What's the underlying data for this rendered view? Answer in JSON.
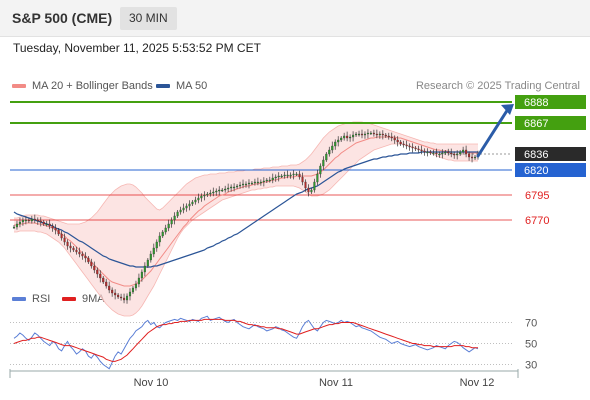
{
  "header": {
    "title": "S&P 500 (CME)",
    "interval": "30 MIN"
  },
  "datetime": "Tuesday, November 11, 2025 5:53:52 PM CET",
  "credit": "Research © 2025 Trading Central",
  "legend": {
    "ma20": {
      "label": "MA 20 + Bollinger Bands",
      "color": "#f28b86"
    },
    "ma50": {
      "label": "MA 50",
      "color": "#2b5597"
    }
  },
  "rsi_legend": {
    "rsi": {
      "label": "RSI",
      "color": "#5b7fd6"
    },
    "ma9": {
      "label": "9MA",
      "color": "#e02020"
    }
  },
  "chart_data": [
    {
      "type": "candlestick",
      "y_range": [
        6720,
        6900
      ],
      "x_labels": [
        "Nov 10",
        "Nov 11",
        "Nov 12"
      ],
      "levels": [
        {
          "value": 6888,
          "label": "6888",
          "style": "resistance",
          "color": "#44a010"
        },
        {
          "value": 6867,
          "label": "6867",
          "style": "resistance",
          "color": "#44a010"
        },
        {
          "value": 6836,
          "label": "6836",
          "style": "last",
          "color": "#2a2a2a"
        },
        {
          "value": 6820,
          "label": "6820",
          "style": "pivot",
          "color": "#2563d1"
        },
        {
          "value": 6795,
          "label": "6795",
          "style": "support",
          "color": "#e02020"
        },
        {
          "value": 6770,
          "label": "6770",
          "style": "support",
          "color": "#e02020"
        }
      ],
      "close": [
        6763,
        6766,
        6768,
        6770,
        6770,
        6769,
        6771,
        6770,
        6769,
        6768,
        6766,
        6766,
        6764,
        6762,
        6760,
        6756,
        6752,
        6748,
        6744,
        6742,
        6740,
        6738,
        6736,
        6734,
        6732,
        6728,
        6724,
        6720,
        6716,
        6712,
        6708,
        6704,
        6700,
        6697,
        6695,
        6693,
        6692,
        6690,
        6694,
        6698,
        6702,
        6706,
        6712,
        6718,
        6724,
        6730,
        6736,
        6742,
        6748,
        6754,
        6758,
        6762,
        6766,
        6770,
        6774,
        6778,
        6780,
        6782,
        6784,
        6786,
        6788,
        6790,
        6792,
        6794,
        6795,
        6796,
        6797,
        6798,
        6799,
        6800,
        6800,
        6801,
        6802,
        6803,
        6803,
        6804,
        6805,
        6806,
        6806,
        6807,
        6807,
        6808,
        6808,
        6808,
        6809,
        6810,
        6810,
        6812,
        6813,
        6814,
        6814,
        6815,
        6815,
        6815,
        6816,
        6816,
        6813,
        6808,
        6802,
        6798,
        6800,
        6808,
        6816,
        6824,
        6830,
        6836,
        6840,
        6844,
        6848,
        6850,
        6852,
        6854,
        6852,
        6853,
        6855,
        6856,
        6856,
        6855,
        6856,
        6857,
        6857,
        6856,
        6855,
        6856,
        6855,
        6854,
        6853,
        6852,
        6850,
        6848,
        6846,
        6845,
        6844,
        6843,
        6842,
        6841,
        6840,
        6839,
        6838,
        6838,
        6837,
        6837,
        6836,
        6836,
        6837,
        6838,
        6837,
        6836,
        6835,
        6836,
        6838,
        6840,
        6836,
        6833,
        6832,
        6833,
        6836
      ],
      "ma20": [
        6765,
        6765,
        6766,
        6766,
        6767,
        6767,
        6767,
        6767,
        6766,
        6766,
        6765,
        6764,
        6763,
        6762,
        6760,
        6758,
        6756,
        6754,
        6751,
        6749,
        6746,
        6743,
        6740,
        6737,
        6734,
        6731,
        6728,
        6725,
        6722,
        6719,
        6716,
        6713,
        6710,
        6708,
        6707,
        6706,
        6705,
        6704,
        6704,
        6704,
        6705,
        6706,
        6708,
        6710,
        6713,
        6716,
        6719,
        6723,
        6727,
        6731,
        6735,
        6739,
        6743,
        6747,
        6751,
        6755,
        6759,
        6763,
        6766,
        6770,
        6773,
        6776,
        6779,
        6781,
        6784,
        6786,
        6788,
        6790,
        6792,
        6794,
        6795,
        6796,
        6798,
        6799,
        6800,
        6801,
        6802,
        6803,
        6804,
        6804,
        6805,
        6806,
        6806,
        6807,
        6808,
        6808,
        6809,
        6810,
        6810,
        6811,
        6812,
        6812,
        6813,
        6813,
        6813,
        6814,
        6814,
        6814,
        6814,
        6814,
        6814,
        6815,
        6816,
        6818,
        6820,
        6823,
        6826,
        6829,
        6832,
        6834,
        6837,
        6839,
        6841,
        6843,
        6845,
        6847,
        6848,
        6849,
        6850,
        6851,
        6852,
        6852,
        6853,
        6853,
        6853,
        6853,
        6853,
        6853,
        6853,
        6852,
        6852,
        6851,
        6850,
        6849,
        6848,
        6847,
        6846,
        6845,
        6844,
        6843,
        6842,
        6841,
        6840,
        6840,
        6839,
        6839,
        6839,
        6838,
        6838,
        6838,
        6838,
        6838,
        6838,
        6837,
        6837,
        6837,
        6837
      ],
      "ma50": [
        6778,
        6776,
        6775,
        6774,
        6773,
        6772,
        6771,
        6770,
        6769,
        6768,
        6767,
        6766,
        6765,
        6764,
        6762,
        6761,
        6760,
        6758,
        6757,
        6755,
        6753,
        6751,
        6749,
        6748,
        6746,
        6744,
        6742,
        6740,
        6738,
        6736,
        6734,
        6733,
        6731,
        6730,
        6729,
        6728,
        6727,
        6726,
        6725,
        6724,
        6724,
        6723,
        6723,
        6723,
        6723,
        6723,
        6723,
        6724,
        6724,
        6725,
        6726,
        6727,
        6728,
        6729,
        6730,
        6731,
        6732,
        6733,
        6734,
        6735,
        6736,
        6737,
        6738,
        6739,
        6740,
        6742,
        6743,
        6744,
        6746,
        6747,
        6749,
        6750,
        6752,
        6753,
        6755,
        6756,
        6758,
        6760,
        6762,
        6764,
        6766,
        6768,
        6770,
        6772,
        6774,
        6776,
        6778,
        6780,
        6782,
        6784,
        6786,
        6788,
        6790,
        6792,
        6794,
        6796,
        6797,
        6798,
        6800,
        6801,
        6802,
        6803,
        6804,
        6806,
        6808,
        6810,
        6812,
        6814,
        6816,
        6818,
        6819,
        6821,
        6822,
        6823,
        6824,
        6825,
        6826,
        6827,
        6828,
        6829,
        6830,
        6831,
        6831,
        6832,
        6833,
        6833,
        6834,
        6834,
        6835,
        6835,
        6836,
        6836,
        6836,
        6837,
        6837,
        6837,
        6837,
        6838,
        6838,
        6838,
        6838,
        6838,
        6838,
        6838,
        6838,
        6838,
        6838,
        6838,
        6838,
        6838,
        6838,
        6838,
        6838,
        6838,
        6838,
        6838,
        6838
      ],
      "bb_upper": [
        6772,
        6772,
        6773,
        6774,
        6775,
        6775,
        6775,
        6775,
        6775,
        6774,
        6774,
        6773,
        6772,
        6771,
        6770,
        6769,
        6768,
        6767,
        6766,
        6766,
        6766,
        6766,
        6766,
        6767,
        6768,
        6770,
        6772,
        6775,
        6778,
        6782,
        6786,
        6790,
        6794,
        6797,
        6800,
        6802,
        6804,
        6805,
        6806,
        6806,
        6805,
        6803,
        6800,
        6797,
        6793,
        6790,
        6787,
        6784,
        6781,
        6780,
        6782,
        6785,
        6788,
        6791,
        6794,
        6797,
        6800,
        6803,
        6806,
        6808,
        6810,
        6812,
        6813,
        6814,
        6815,
        6815,
        6816,
        6816,
        6816,
        6817,
        6817,
        6817,
        6818,
        6818,
        6818,
        6819,
        6819,
        6819,
        6820,
        6820,
        6820,
        6821,
        6821,
        6821,
        6822,
        6822,
        6822,
        6823,
        6823,
        6823,
        6824,
        6824,
        6824,
        6825,
        6825,
        6825,
        6826,
        6828,
        6830,
        6833,
        6836,
        6840,
        6844,
        6848,
        6852,
        6855,
        6858,
        6860,
        6862,
        6864,
        6865,
        6866,
        6867,
        6867,
        6868,
        6868,
        6868,
        6868,
        6867,
        6867,
        6866,
        6865,
        6864,
        6863,
        6862,
        6861,
        6860,
        6859,
        6858,
        6857,
        6856,
        6855,
        6854,
        6853,
        6852,
        6851,
        6850,
        6849,
        6848,
        6848,
        6847,
        6847,
        6846,
        6846,
        6846,
        6846,
        6846,
        6846,
        6846,
        6846,
        6846,
        6846,
        6846,
        6846,
        6846,
        6846,
        6846
      ],
      "bb_lower": [
        6758,
        6758,
        6759,
        6759,
        6759,
        6759,
        6759,
        6759,
        6758,
        6758,
        6757,
        6756,
        6754,
        6752,
        6750,
        6748,
        6745,
        6742,
        6738,
        6734,
        6730,
        6726,
        6722,
        6718,
        6714,
        6710,
        6706,
        6702,
        6698,
        6694,
        6690,
        6686,
        6683,
        6680,
        6678,
        6676,
        6675,
        6674,
        6674,
        6674,
        6675,
        6677,
        6680,
        6684,
        6689,
        6694,
        6699,
        6704,
        6710,
        6716,
        6722,
        6728,
        6734,
        6740,
        6746,
        6752,
        6757,
        6761,
        6764,
        6767,
        6770,
        6772,
        6774,
        6776,
        6778,
        6780,
        6782,
        6784,
        6786,
        6788,
        6790,
        6791,
        6792,
        6793,
        6794,
        6795,
        6796,
        6797,
        6798,
        6799,
        6800,
        6800,
        6801,
        6801,
        6802,
        6802,
        6803,
        6803,
        6804,
        6804,
        6804,
        6804,
        6804,
        6804,
        6804,
        6803,
        6802,
        6800,
        6798,
        6796,
        6794,
        6794,
        6794,
        6795,
        6796,
        6798,
        6800,
        6803,
        6806,
        6809,
        6812,
        6815,
        6818,
        6821,
        6824,
        6827,
        6830,
        6832,
        6834,
        6836,
        6838,
        6840,
        6841,
        6842,
        6843,
        6844,
        6845,
        6846,
        6846,
        6846,
        6846,
        6846,
        6845,
        6844,
        6843,
        6842,
        6841,
        6840,
        6839,
        6838,
        6837,
        6836,
        6834,
        6833,
        6832,
        6831,
        6830,
        6830,
        6829,
        6829,
        6829,
        6829,
        6829,
        6829,
        6829,
        6829,
        6829
      ]
    },
    {
      "type": "line",
      "y_range": [
        20,
        80
      ],
      "y_ticks": [
        70,
        50,
        30
      ],
      "x_labels": [
        "Nov 10",
        "Nov 11",
        "Nov 12"
      ],
      "rsi": [
        55,
        57,
        60,
        58,
        55,
        53,
        56,
        60,
        58,
        55,
        52,
        50,
        48,
        52,
        50,
        45,
        43,
        48,
        52,
        47,
        44,
        40,
        42,
        45,
        43,
        38,
        36,
        40,
        37,
        33,
        30,
        28,
        26,
        32,
        38,
        42,
        40,
        45,
        50,
        55,
        58,
        62,
        64,
        66,
        70,
        72,
        68,
        70,
        66,
        65,
        68,
        70,
        71,
        72,
        73,
        72,
        74,
        73,
        72,
        71,
        73,
        72,
        71,
        74,
        75,
        76,
        72,
        73,
        74,
        75,
        73,
        71,
        70,
        72,
        73,
        70,
        68,
        66,
        65,
        64,
        66,
        68,
        66,
        65,
        64,
        62,
        63,
        64,
        66,
        65,
        63,
        62,
        60,
        58,
        56,
        55,
        60,
        66,
        70,
        72,
        68,
        64,
        62,
        66,
        70,
        72,
        71,
        70,
        69,
        70,
        72,
        70,
        71,
        70,
        68,
        66,
        67,
        65,
        64,
        63,
        62,
        60,
        58,
        56,
        55,
        54,
        52,
        50,
        51,
        52,
        50,
        49,
        48,
        47,
        48,
        49,
        47,
        46,
        45,
        44,
        45,
        46,
        48,
        47,
        46,
        45,
        48,
        50,
        52,
        51,
        49,
        46,
        44,
        42,
        44,
        46,
        45
      ],
      "ma9": [
        50,
        51,
        52,
        53,
        53,
        54,
        55,
        55,
        56,
        56,
        55,
        54,
        53,
        52,
        51,
        50,
        49,
        48,
        48,
        48,
        47,
        46,
        45,
        44,
        43,
        42,
        41,
        40,
        39,
        38,
        37,
        35,
        34,
        33,
        33,
        34,
        35,
        37,
        39,
        42,
        45,
        48,
        51,
        54,
        57,
        60,
        62,
        64,
        66,
        67,
        68,
        68,
        69,
        69,
        70,
        70,
        71,
        71,
        71,
        72,
        72,
        72,
        72,
        72,
        73,
        73,
        73,
        73,
        73,
        73,
        73,
        72,
        72,
        72,
        72,
        71,
        71,
        70,
        69,
        68,
        68,
        67,
        67,
        66,
        66,
        65,
        65,
        65,
        65,
        64,
        64,
        63,
        62,
        61,
        60,
        59,
        59,
        60,
        61,
        62,
        63,
        64,
        64,
        65,
        66,
        67,
        68,
        68,
        69,
        69,
        70,
        70,
        70,
        70,
        70,
        69,
        68,
        67,
        66,
        65,
        64,
        63,
        62,
        61,
        60,
        59,
        58,
        57,
        56,
        55,
        54,
        53,
        52,
        51,
        50,
        50,
        49,
        49,
        48,
        48,
        48,
        47,
        47,
        47,
        47,
        47,
        47,
        47,
        48,
        48,
        48,
        48,
        47,
        47,
        46,
        46,
        46
      ]
    }
  ]
}
